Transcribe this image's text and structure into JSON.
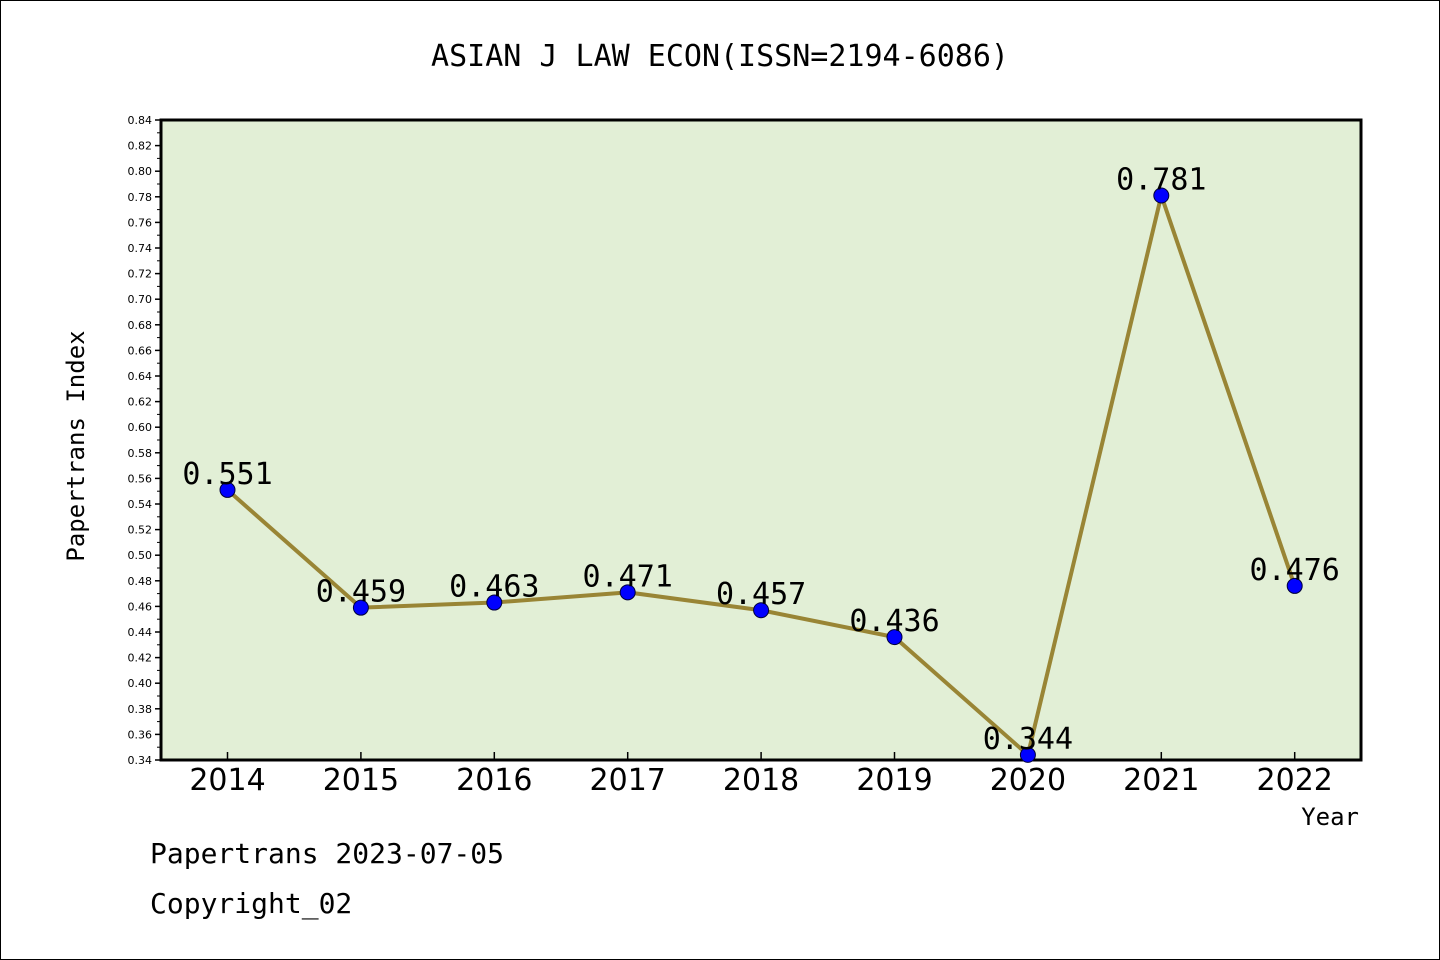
{
  "chart_data": {
    "type": "line",
    "title": "ASIAN J LAW ECON(ISSN=2194-6086)",
    "xlabel": "Year",
    "ylabel": "Papertrans Index",
    "categories": [
      "2014",
      "2015",
      "2016",
      "2017",
      "2018",
      "2019",
      "2020",
      "2021",
      "2022"
    ],
    "values": [
      0.551,
      0.459,
      0.463,
      0.471,
      0.457,
      0.436,
      0.344,
      0.781,
      0.476
    ],
    "data_labels": [
      "0.551",
      "0.459",
      "0.463",
      "0.471",
      "0.457",
      "0.436",
      "0.344",
      "0.781",
      "0.476"
    ],
    "ylim": [
      0.34,
      0.84
    ],
    "yticks": [
      "0.34",
      "0.36",
      "0.38",
      "0.40",
      "0.42",
      "0.44",
      "0.46",
      "0.48",
      "0.50",
      "0.52",
      "0.54",
      "0.56",
      "0.58",
      "0.60",
      "0.62",
      "0.64",
      "0.66",
      "0.68",
      "0.70",
      "0.72",
      "0.74",
      "0.76",
      "0.78",
      "0.80",
      "0.82",
      "0.84"
    ],
    "grid": false,
    "colors": {
      "plot_background": "#e2efd6",
      "line": "#998535",
      "marker": "#0000ff"
    }
  },
  "footer": {
    "source": "Papertrans 2023-07-05",
    "copyright": "Copyright_02"
  }
}
